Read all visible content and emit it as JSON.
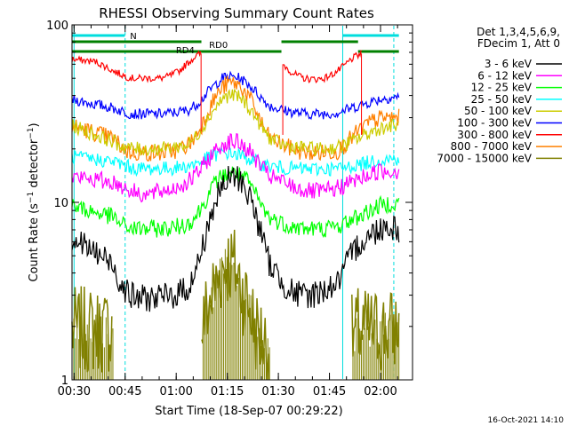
{
  "chart_data": {
    "type": "line",
    "title": "RHESSI Observing Summary Count Rates",
    "xlabel": "Start Time (18-Sep-07 00:29:22)",
    "ylabel_prefix": "Count Rate (s",
    "ylabel_mid": "−1",
    "ylabel_suffix": " detector",
    "ylabel_close": ")",
    "y_scale": "log",
    "ylim": [
      1,
      100
    ],
    "xlim_minutes": [
      0,
      100
    ],
    "x_ticks": [
      "00:30",
      "00:45",
      "01:00",
      "01:15",
      "01:30",
      "01:45",
      "02:00"
    ],
    "x_tick_minutes": [
      0.6,
      15.6,
      30.6,
      45.6,
      60.6,
      75.6,
      90.6
    ],
    "y_ticks": [
      "1",
      "10",
      "100"
    ],
    "y_tick_values": [
      1,
      10,
      100
    ],
    "legend_header": [
      "Det 1,3,4,5,6,9,",
      "FDecim 1, Att 0"
    ],
    "legend_position": "right",
    "series": [
      {
        "name": "3 - 6 keV",
        "color": "#000000",
        "x": [
          0,
          12,
          14,
          16,
          18,
          22,
          26,
          30,
          34,
          36,
          38,
          40,
          42,
          44,
          46,
          48,
          50,
          52,
          54,
          56,
          58,
          62,
          66,
          70,
          74,
          78,
          80,
          82,
          84,
          86,
          88,
          90,
          92,
          94,
          96
        ],
        "y": [
          6.3,
          4.5,
          3.6,
          3.2,
          2.9,
          2.9,
          2.9,
          3.0,
          3.3,
          3.9,
          5.3,
          7.5,
          10,
          12,
          13.5,
          14,
          13,
          11,
          8.5,
          6.2,
          4.5,
          3.5,
          3.0,
          3.0,
          3.2,
          3.5,
          4.2,
          5.0,
          5.8,
          6.2,
          6.6,
          7.1,
          7.4,
          7.3,
          7.1
        ]
      },
      {
        "name": "6 - 12 keV",
        "color": "#ff00ff",
        "x": [
          0,
          12,
          14,
          16,
          18,
          22,
          26,
          30,
          34,
          36,
          38,
          40,
          42,
          44,
          46,
          48,
          50,
          52,
          54,
          56,
          58,
          62,
          66,
          70,
          74,
          78,
          80,
          82,
          84,
          86,
          88,
          90,
          92,
          94,
          96
        ],
        "y": [
          14,
          13,
          12.5,
          12,
          11.5,
          11,
          11.5,
          12,
          13,
          14,
          15.5,
          17.5,
          19.5,
          21,
          22,
          22,
          21,
          19.5,
          17.5,
          15.5,
          14,
          13,
          12,
          11.5,
          11.5,
          12,
          12.5,
          13,
          13.5,
          14,
          14.5,
          15,
          15,
          15,
          15
        ]
      },
      {
        "name": "12 - 25 keV",
        "color": "#00ff00",
        "x": [
          0,
          12,
          14,
          16,
          18,
          22,
          26,
          30,
          34,
          36,
          38,
          40,
          42,
          44,
          46,
          48,
          50,
          52,
          54,
          56,
          58,
          62,
          66,
          70,
          74,
          78,
          80,
          82,
          84,
          86,
          88,
          90,
          92,
          94,
          96
        ],
        "y": [
          9.5,
          8.3,
          7.6,
          7.3,
          7.1,
          7.1,
          7.1,
          7.2,
          7.6,
          8.2,
          9.3,
          11,
          12.8,
          14,
          14.6,
          14.6,
          14,
          12.8,
          11,
          9.3,
          8.2,
          7.6,
          7.2,
          7.1,
          7.1,
          7.3,
          7.6,
          8,
          8.3,
          8.7,
          9.1,
          9.5,
          9.8,
          9.9,
          9.9
        ]
      },
      {
        "name": "25 - 50 keV",
        "color": "#00ffff",
        "x": [
          0,
          12,
          14,
          16,
          18,
          22,
          26,
          30,
          34,
          36,
          38,
          40,
          42,
          44,
          46,
          48,
          50,
          52,
          54,
          56,
          58,
          62,
          66,
          70,
          74,
          78,
          80,
          82,
          84,
          86,
          88,
          90,
          92,
          94,
          96
        ],
        "y": [
          18,
          17,
          16.5,
          16,
          15.5,
          15.5,
          15.5,
          15.6,
          16,
          16.5,
          17,
          17.8,
          18.5,
          19,
          19,
          18.7,
          18.2,
          17.6,
          17,
          16.4,
          16,
          15.6,
          15.5,
          15.4,
          15.4,
          15.5,
          15.6,
          16,
          16.3,
          16.6,
          17,
          17.3,
          17.5,
          17.6,
          17.6
        ]
      },
      {
        "name": "50 - 100 keV",
        "color": "#cccc00",
        "x": [
          0,
          12,
          14,
          16,
          18,
          22,
          26,
          30,
          34,
          36,
          38,
          40,
          42,
          44,
          46,
          48,
          50,
          52,
          54,
          56,
          58,
          62,
          66,
          70,
          74,
          78,
          80,
          82,
          84,
          86,
          88,
          90,
          92,
          94,
          96
        ],
        "y": [
          27,
          22,
          21,
          20.5,
          20,
          20,
          20,
          20.5,
          21,
          23,
          26,
          30,
          34,
          38,
          40,
          40,
          38,
          34,
          30,
          26,
          23,
          21,
          20.5,
          20,
          20,
          20.5,
          21,
          22,
          23,
          24,
          25,
          26,
          26.5,
          27,
          27
        ]
      },
      {
        "name": "100 - 300 keV",
        "color": "#0000ff",
        "x": [
          0,
          12,
          14,
          16,
          18,
          22,
          26,
          30,
          34,
          36,
          38,
          40,
          42,
          44,
          46,
          48,
          50,
          52,
          54,
          56,
          58,
          62,
          66,
          70,
          74,
          78,
          80,
          82,
          84,
          86,
          88,
          90,
          92,
          94,
          96
        ],
        "y": [
          38,
          34,
          33,
          32,
          31.5,
          31.5,
          31.5,
          32,
          33,
          35,
          38,
          42,
          46,
          50,
          51,
          51,
          49,
          46,
          42,
          38,
          35,
          33,
          32,
          31.5,
          31.5,
          32,
          33,
          34,
          35,
          36,
          37,
          38,
          38.5,
          39,
          39
        ]
      },
      {
        "name": "300 - 800 keV",
        "color": "#ff0000",
        "x": [
          0,
          7,
          10,
          12,
          14,
          16,
          18,
          22,
          26,
          28,
          30,
          32,
          34,
          36,
          37.9,
          38,
          40,
          42,
          44,
          46,
          48,
          50,
          52,
          54,
          56,
          58,
          60,
          61.9,
          62,
          64,
          66,
          68,
          70,
          72,
          74,
          76,
          78,
          80,
          82,
          85,
          85.1
        ],
        "y": [
          64,
          62,
          58,
          55,
          53,
          51,
          50,
          50,
          50,
          51,
          53,
          56,
          61,
          66,
          69,
          null,
          null,
          null,
          null,
          null,
          null,
          null,
          null,
          null,
          null,
          null,
          null,
          null,
          60,
          55,
          52,
          50,
          49.5,
          49.5,
          50,
          52,
          55,
          59,
          64,
          69,
          null
        ]
      },
      {
        "name": "800 - 7000 keV",
        "color": "#ff8000",
        "x": [
          0,
          12,
          14,
          16,
          18,
          22,
          26,
          30,
          34,
          36,
          38,
          40,
          42,
          44,
          46,
          48,
          50,
          52,
          54,
          56,
          58,
          62,
          66,
          70,
          74,
          78,
          80,
          82,
          84,
          86,
          88,
          90,
          92,
          94,
          96
        ],
        "y": [
          27,
          23,
          21,
          19.5,
          19,
          19,
          19,
          19.5,
          21,
          23,
          27,
          33,
          39,
          44,
          47,
          47,
          44,
          39,
          33,
          27,
          23,
          21,
          19.5,
          19,
          19,
          19.5,
          21,
          23,
          25,
          27,
          28.5,
          29.5,
          30,
          30,
          30
        ]
      },
      {
        "name": "7000 - 15000 keV",
        "color": "#808000",
        "x": [
          0,
          12,
          13,
          14,
          16,
          18,
          22,
          26,
          30,
          34,
          38,
          40,
          42,
          44,
          46,
          48,
          50,
          52,
          54,
          56,
          58,
          62,
          66,
          70,
          74,
          78,
          80,
          82,
          84,
          86,
          88,
          90,
          92,
          94,
          96
        ],
        "y": [
          1.9,
          1.9,
          null,
          null,
          null,
          null,
          null,
          null,
          null,
          null,
          1.9,
          2.6,
          3.3,
          4.2,
          4.6,
          4.2,
          3.3,
          2.6,
          1.9,
          1.7,
          1.5,
          null,
          null,
          null,
          null,
          null,
          null,
          1.7,
          1.9,
          1.9,
          1.9,
          1.9,
          1.9,
          1.9,
          1.9
        ]
      }
    ],
    "annotations": [
      {
        "text": "N",
        "color": "#00dddd"
      },
      {
        "text": "RD4",
        "color": "#008000"
      },
      {
        "text": "RD0",
        "color": "#008000"
      }
    ],
    "footer_timestamp": "16-Oct-2021 14:10"
  }
}
